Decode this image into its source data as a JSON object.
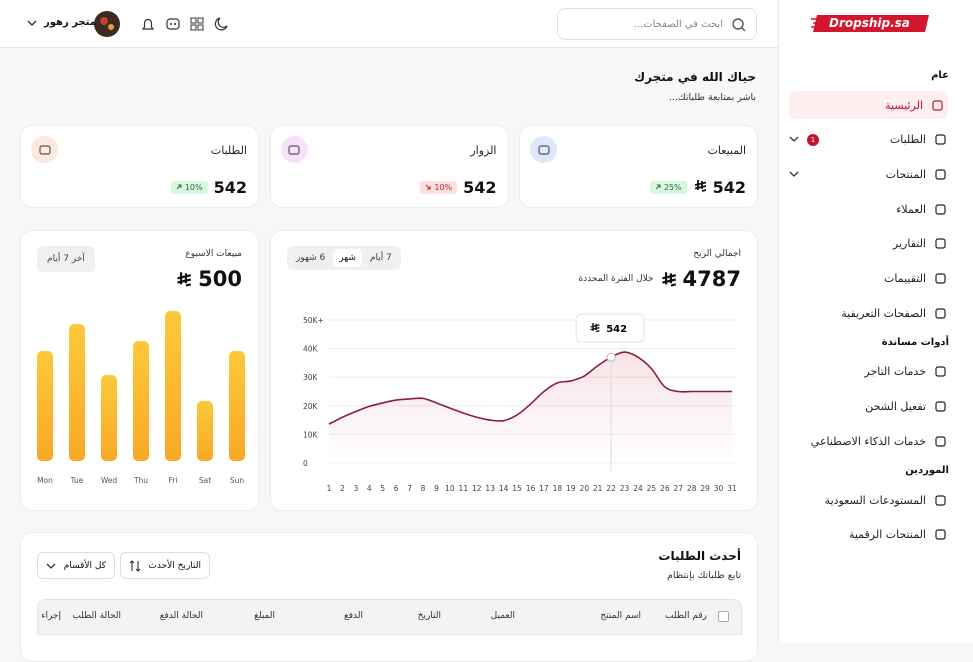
{
  "brand": "Dropship.sa",
  "header": {
    "search_placeholder": "ابحث في الصفحات...",
    "user_name": "متجر زهور"
  },
  "sidebar": {
    "sections": [
      {
        "title": "عام",
        "items": [
          {
            "label": "الرئيسية",
            "active": true
          },
          {
            "label": "الطلبات",
            "badge": 1,
            "expandable": true
          },
          {
            "label": "المنتجات",
            "expandable": true
          },
          {
            "label": "العملاء"
          },
          {
            "label": "التقارير"
          },
          {
            "label": "التقييمات"
          },
          {
            "label": "الصفحات التعريفية"
          }
        ]
      },
      {
        "title": "أدوات مساندة",
        "items": [
          {
            "label": "خدمات التاجر"
          },
          {
            "label": "تفعيل الشحن"
          },
          {
            "label": "خدمات الذكاء الاصطناعي"
          }
        ]
      },
      {
        "title": "الموردين",
        "items": [
          {
            "label": "المستودعات السعودية"
          },
          {
            "label": "المنتجات الرقمية"
          }
        ]
      }
    ]
  },
  "welcome": {
    "title": "حياك الله في متجرك",
    "subtitle": "باشر بمتابعة طلباتك..."
  },
  "stats": [
    {
      "label": "المبيعات",
      "value": 542,
      "change": {
        "value": 25,
        "label": "25%"
      },
      "trend": "up",
      "color": "#dfe8fb"
    },
    {
      "label": "الزوار",
      "value": 542,
      "change": {
        "value": 10,
        "label": "10%"
      },
      "trend": "down",
      "color": "#f8e1fb"
    },
    {
      "label": "الطلبات",
      "value": 542,
      "change": {
        "value": 10,
        "label": "10%"
      },
      "trend": "up",
      "color": "#fde9e0"
    }
  ],
  "chart_data": [
    {
      "type": "line",
      "title": "اجمالي الربح",
      "total": 4787,
      "subtitle": "خلال الفترة المحددة",
      "tabs": [
        "7 أيام",
        "شهر",
        "6 شهور"
      ],
      "active_tab": 1,
      "x": [
        1,
        2,
        3,
        4,
        5,
        6,
        7,
        8,
        9,
        10,
        11,
        12,
        13,
        14,
        15,
        16,
        17,
        18,
        19,
        20,
        21,
        22,
        23,
        24,
        25,
        26,
        27,
        28,
        29,
        30,
        31
      ],
      "series": [
        {
          "color": "#8b1e3f",
          "values": [
            13600,
            16000,
            18000,
            19800,
            21000,
            22000,
            22400,
            22600,
            21000,
            19200,
            17500,
            16000,
            15000,
            14800,
            16800,
            20600,
            25000,
            28000,
            28700,
            30400,
            34000,
            37000,
            38800,
            37000,
            33000,
            26600,
            25000,
            25000,
            25000,
            25000,
            25000
          ]
        }
      ],
      "xlim": [
        1,
        31
      ],
      "ylim": [
        0,
        50000
      ],
      "yticks": [
        0,
        {
          "value": 10000,
          "label": "10K"
        },
        {
          "value": 20000,
          "label": "20K"
        },
        {
          "value": 30000,
          "label": "30K"
        },
        {
          "value": 40000,
          "label": "40K"
        },
        {
          "value": 50000,
          "label": "50K+"
        }
      ],
      "grid": true,
      "tooltip": {
        "x": 22,
        "label": "542"
      }
    },
    {
      "type": "bar",
      "title": "مبيعات الاسبوع",
      "total": 500,
      "range_button": "آخر 7 أيام",
      "categories": [
        "Mon",
        "Tue",
        "Wed",
        "Thu",
        "Fri",
        "Sat",
        "Sun"
      ],
      "values": [
        110,
        137,
        86,
        120,
        150,
        60,
        110
      ],
      "color": "#fbbf24"
    }
  ],
  "orders": {
    "title": "أحدث الطلبات",
    "subtitle": "تابع طلباتك بإنتظام",
    "filters": [
      "كل الأقسام",
      "التاريخ الأحدث"
    ],
    "columns": [
      "رقم الطلب",
      "اسم المنتج",
      "العميل",
      "التاريخ",
      "الدفع",
      "المبلغ",
      "الحالة الدفع",
      "الحالة الطلب",
      "إجراء"
    ]
  }
}
